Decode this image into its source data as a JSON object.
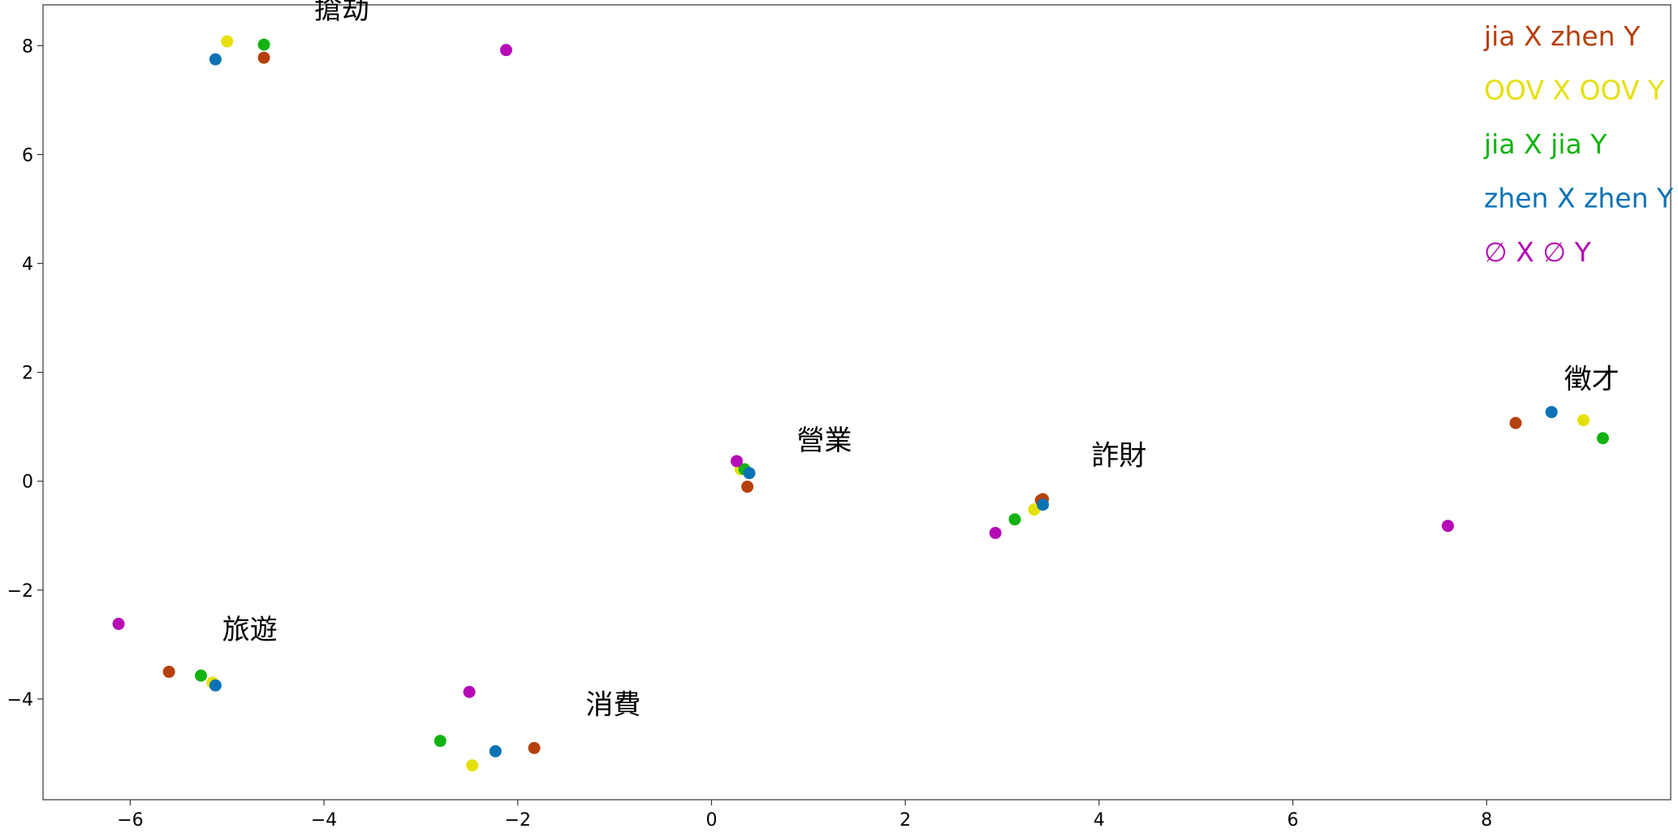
{
  "chart_data": {
    "type": "scatter",
    "title": "",
    "xlabel": "",
    "ylabel": "",
    "xlim": [
      -6.9,
      9.9
    ],
    "ylim": [
      -5.85,
      8.75
    ],
    "xticks": [
      -6,
      -4,
      -2,
      0,
      2,
      4,
      6,
      8
    ],
    "yticks": [
      -4,
      -2,
      0,
      2,
      4,
      6,
      8
    ],
    "xtick_labels": [
      "−6",
      "−4",
      "−2",
      "0",
      "2",
      "4",
      "6",
      "8"
    ],
    "ytick_labels": [
      "−4",
      "−2",
      "0",
      "2",
      "4",
      "6",
      "8"
    ],
    "grid": false,
    "legend_position": "top-right",
    "legend_style": "colored text entries, no markers",
    "series": [
      {
        "name": "jia X zhen Y",
        "color": "#b5400a",
        "points": [
          [
            -4.62,
            7.78
          ],
          [
            -5.6,
            -3.5
          ],
          [
            -1.83,
            -4.9
          ],
          [
            0.37,
            -0.1
          ],
          [
            3.42,
            -0.33
          ],
          [
            8.3,
            1.07
          ],
          [
            3.4,
            -0.35
          ]
        ]
      },
      {
        "name": "OOV X OOV Y",
        "color": "#e6e00a",
        "points": [
          [
            -5.0,
            8.08
          ],
          [
            -5.15,
            -3.7
          ],
          [
            -2.47,
            -5.22
          ],
          [
            0.3,
            0.22
          ],
          [
            3.33,
            -0.52
          ],
          [
            9.0,
            1.12
          ]
        ]
      },
      {
        "name": "jia X jia Y",
        "color": "#12b312",
        "points": [
          [
            -4.62,
            8.02
          ],
          [
            -5.27,
            -3.57
          ],
          [
            -2.8,
            -4.77
          ],
          [
            0.34,
            0.22
          ],
          [
            3.13,
            -0.7
          ],
          [
            9.2,
            0.79
          ]
        ]
      },
      {
        "name": "zhen X zhen Y",
        "color": "#0a72b5",
        "points": [
          [
            -5.12,
            7.75
          ],
          [
            -5.12,
            -3.75
          ],
          [
            -2.23,
            -4.96
          ],
          [
            0.39,
            0.15
          ],
          [
            3.42,
            -0.43
          ],
          [
            8.67,
            1.27
          ]
        ]
      },
      {
        "name": "∅ X ∅ Y",
        "color": "#b50ab5",
        "points": [
          [
            -2.12,
            7.92
          ],
          [
            -6.12,
            -2.62
          ],
          [
            -2.5,
            -3.87
          ],
          [
            0.26,
            0.37
          ],
          [
            2.93,
            -0.95
          ],
          [
            7.6,
            -0.82
          ]
        ]
      }
    ],
    "annotations": [
      {
        "text": "搶劫",
        "x": -4.1,
        "y": 8.5
      },
      {
        "text": "旅遊",
        "x": -5.05,
        "y": -2.9
      },
      {
        "text": "消費",
        "x": -1.3,
        "y": -4.28
      },
      {
        "text": "營業",
        "x": 0.88,
        "y": 0.58
      },
      {
        "text": "詐財",
        "x": 3.92,
        "y": 0.3
      },
      {
        "text": "徵才",
        "x": 8.8,
        "y": 1.7
      }
    ],
    "marker_size": 11
  }
}
